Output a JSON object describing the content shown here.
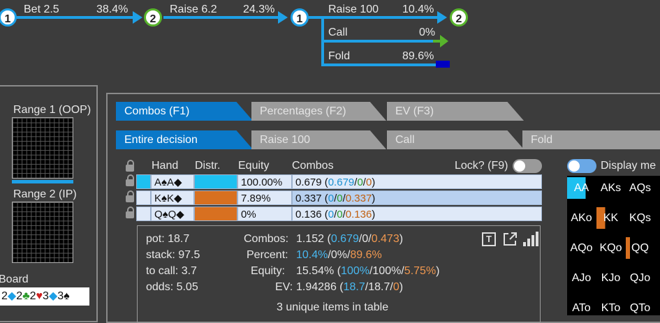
{
  "tree": {
    "nodes": [
      "1",
      "2",
      "1",
      "2"
    ],
    "actions": [
      {
        "label": "Bet 2.5",
        "pct": "38.4%"
      },
      {
        "label": "Raise 6.2",
        "pct": "24.3%"
      },
      {
        "label": "Raise 100",
        "pct": "10.4%"
      },
      {
        "label": "Call",
        "pct": "0%"
      },
      {
        "label": "Fold",
        "pct": "89.6%"
      }
    ],
    "colors": {
      "line": "#1ea0e6",
      "call": "#58b42c",
      "fold": "#0000c0"
    }
  },
  "left": {
    "range1_label": "Range 1 (OOP)",
    "range2_label": "Range 2 (IP)",
    "board_label": "Board",
    "board_cards": [
      {
        "rank": "2",
        "suit": "◆",
        "color": "#1ea0e6"
      },
      {
        "rank": "2",
        "suit": "♣",
        "color": "#2a9a2a"
      },
      {
        "rank": "2",
        "suit": "♥",
        "color": "#d02020"
      },
      {
        "rank": "3",
        "suit": "◆",
        "color": "#1ea0e6"
      },
      {
        "rank": "3",
        "suit": "♠",
        "color": "#111111"
      }
    ]
  },
  "tabs1": [
    {
      "label": "Combos (F1)",
      "active": true
    },
    {
      "label": "Percentages (F2)",
      "active": false
    },
    {
      "label": "EV (F3)",
      "active": false
    }
  ],
  "tabs2": [
    {
      "label": "Entire decision",
      "active": true
    },
    {
      "label": "Raise 100",
      "active": false
    },
    {
      "label": "Call",
      "active": false
    },
    {
      "label": "Fold",
      "active": false
    }
  ],
  "table": {
    "headers": {
      "hand": "Hand",
      "distr": "Distr.",
      "equity": "Equity",
      "combos": "Combos"
    },
    "lock_label": "Lock? (F9)",
    "rows": [
      {
        "hand": "A♠A◆",
        "distr_color": "#1ec0f0",
        "equity": "100.00%",
        "combos_total": "0.679",
        "c1": "0.679",
        "c2": "0",
        "c3": "0"
      },
      {
        "hand": "K♠K◆",
        "distr_color": "#d87020",
        "equity": "7.89%",
        "combos_total": "0.337",
        "c1": "0",
        "c2": "0",
        "c3": "0.337"
      },
      {
        "hand": "Q♠Q◆",
        "distr_color": "#d87020",
        "equity": "0%",
        "combos_total": "0.136",
        "c1": "0",
        "c2": "0",
        "c3": "0.136"
      }
    ]
  },
  "summary": {
    "pot": "pot: 18.7",
    "stack": "stack: 97.5",
    "to_call": "to call: 3.7",
    "odds": "odds: 5.05",
    "combos_label": "Combos:",
    "combos_total": "1.152",
    "combos_parts": [
      "0.679",
      "0",
      "0.473"
    ],
    "percent_label": "Percent:",
    "percent_parts": [
      "10.4%",
      "0%",
      "89.6%"
    ],
    "equity_label": "Equity:",
    "equity_total": "15.54%",
    "equity_parts": [
      "100%",
      "100%",
      "5.75%"
    ],
    "ev_label": "EV:",
    "ev_total": "1.94286",
    "ev_parts": [
      "18.7",
      "18.7",
      "0"
    ],
    "footer": "3 unique items in table"
  },
  "right": {
    "display_label": "Display me",
    "grid": [
      [
        "AA",
        "AKs",
        "AQs"
      ],
      [
        "AKo",
        "KK",
        "KQs"
      ],
      [
        "AQo",
        "KQo",
        "QQ"
      ],
      [
        "AJo",
        "KJo",
        "QJo"
      ],
      [
        "ATo",
        "KTo",
        "QTo"
      ]
    ]
  }
}
